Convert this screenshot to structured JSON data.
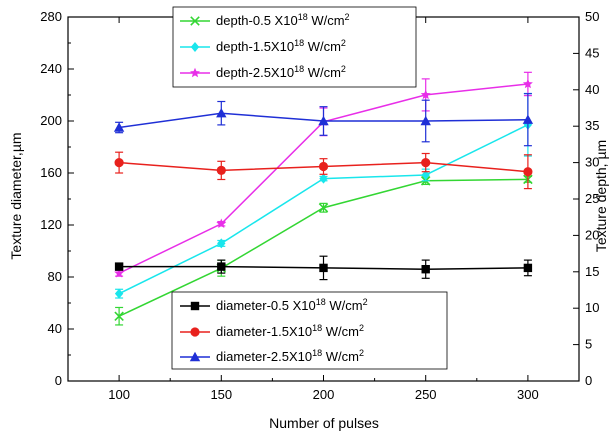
{
  "chart_data": {
    "type": "line",
    "x": [
      100,
      150,
      200,
      250,
      300
    ],
    "xlabel": "Number of pulses",
    "ylabel_left": "Texture diameter,µm",
    "ylabel_right": "Texture depth, µm",
    "xlim": [
      75,
      325
    ],
    "ylim_left": [
      0,
      280
    ],
    "ylim_right": [
      0,
      50
    ],
    "xticks": [
      100,
      150,
      200,
      250,
      300
    ],
    "yticks_left": [
      0,
      40,
      80,
      120,
      160,
      200,
      240,
      280
    ],
    "yticks_right": [
      0,
      5,
      10,
      15,
      20,
      25,
      30,
      35,
      40,
      45,
      50
    ],
    "grid": false,
    "legend_top": {
      "placement": "top-center"
    },
    "legend_bottom": {
      "placement": "bottom-center"
    },
    "series": [
      {
        "name": "diameter-0.5 X10^18 W/cm^2",
        "legend_text": "diameter-0.5 X10",
        "legend_exp": "18",
        "legend_unit": " W/cm",
        "legend_unit_exp": "2",
        "axis": "left",
        "marker": "square",
        "color": "#000000",
        "values": [
          88,
          88,
          87,
          86,
          87
        ],
        "errors": [
          2,
          5,
          9,
          7,
          6
        ]
      },
      {
        "name": "diameter-1.5X10^18 W/cm^2",
        "legend_text": "diameter-1.5X10",
        "legend_exp": "18",
        "legend_unit": "  W/cm",
        "legend_unit_exp": "2",
        "axis": "left",
        "marker": "circle",
        "color": "#e8211d",
        "values": [
          168,
          162,
          165,
          168,
          161
        ],
        "errors": [
          8,
          7,
          6,
          7,
          13
        ]
      },
      {
        "name": "diameter-2.5X10^18 W/cm^2",
        "legend_text": "diameter-2.5X10",
        "legend_exp": "18",
        "legend_unit": "  W/cm",
        "legend_unit_exp": "2",
        "axis": "left",
        "marker": "triangle",
        "color": "#1f2fd6",
        "values": [
          195,
          206,
          200,
          200,
          201
        ],
        "errors": [
          4,
          9,
          11,
          16,
          20
        ]
      },
      {
        "name": "depth-0.5 X10^18 W/cm^2",
        "legend_text": "depth-0.5 X10",
        "legend_exp": "18",
        "legend_unit": " W/cm",
        "legend_unit_exp": "2",
        "axis": "right",
        "marker": "x",
        "color": "#33d633",
        "values": [
          8.9,
          15.5,
          23.8,
          27.5,
          27.7
        ],
        "errors": [
          1.2,
          1.1,
          0.6,
          0.5,
          0.4
        ]
      },
      {
        "name": "depth-1.5X10^18 W/cm^2",
        "legend_text": "depth-1.5X10",
        "legend_exp": "18",
        "legend_unit": " W/cm",
        "legend_unit_exp": "2",
        "axis": "right",
        "marker": "diamond",
        "color": "#19e6ec",
        "values": [
          12,
          18.9,
          27.8,
          28.3,
          35.2
        ],
        "errors": [
          0.6,
          0.4,
          0.3,
          0.8,
          4.3
        ]
      },
      {
        "name": "depth-2.5X10^18 W/cm^2",
        "legend_text": "depth-2.5X10",
        "legend_exp": "18",
        "legend_unit": " W/cm",
        "legend_unit_exp": "2",
        "axis": "right",
        "marker": "star",
        "color": "#e82ee8",
        "values": [
          14.8,
          21.6,
          35.6,
          39.3,
          40.8
        ],
        "errors": [
          0.4,
          0.3,
          1.9,
          2.2,
          1.6
        ]
      }
    ]
  }
}
